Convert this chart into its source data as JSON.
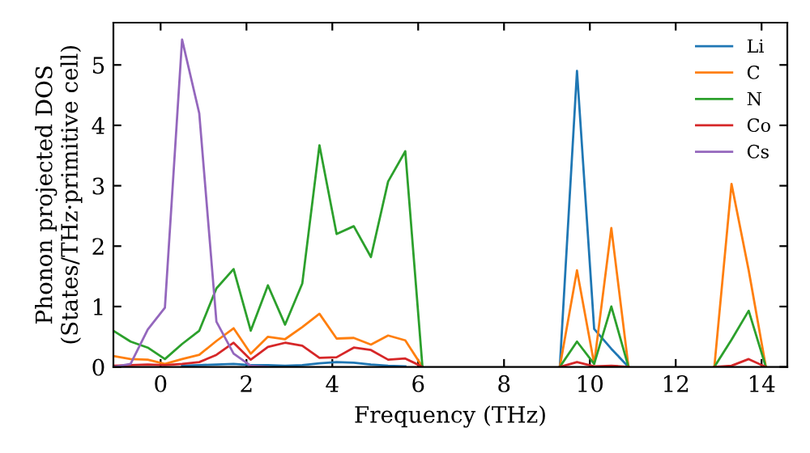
{
  "chart_data": {
    "type": "line",
    "xlabel": "Frequency (THz)",
    "ylabel": "Phonon projected DOS\n(States/THz·primitive cell)",
    "x": [
      -1.1,
      -0.7,
      -0.3,
      0.1,
      0.5,
      0.9,
      1.3,
      1.7,
      2.1,
      2.5,
      2.9,
      3.3,
      3.7,
      4.1,
      4.5,
      4.9,
      5.3,
      5.7,
      6.1,
      6.5,
      6.9,
      7.3,
      7.7,
      8.1,
      8.5,
      8.9,
      9.3,
      9.7,
      10.1,
      10.5,
      10.9,
      11.3,
      11.7,
      12.1,
      12.5,
      12.9,
      13.3,
      13.7,
      14.1
    ],
    "series": [
      {
        "name": "Li",
        "color": "#1f77b4",
        "values": [
          null,
          null,
          null,
          null,
          0.02,
          0.03,
          0.04,
          0.05,
          0.03,
          0.03,
          0.02,
          0.03,
          0.06,
          0.08,
          0.07,
          0.04,
          0.02,
          0.01,
          null,
          null,
          null,
          null,
          null,
          null,
          null,
          null,
          0,
          4.9,
          0.63,
          0.3,
          0,
          null,
          null,
          null,
          null,
          null,
          null,
          null,
          null
        ]
      },
      {
        "name": "C",
        "color": "#ff7f0e",
        "values": [
          0.18,
          0.13,
          0.12,
          0.05,
          0.13,
          0.2,
          0.43,
          0.64,
          0.22,
          0.5,
          0.46,
          0.66,
          0.88,
          0.47,
          0.48,
          0.37,
          0.52,
          0.44,
          0,
          null,
          null,
          null,
          null,
          null,
          null,
          null,
          0,
          1.6,
          0.05,
          2.3,
          0,
          null,
          null,
          null,
          null,
          0,
          3.03,
          1.6,
          0
        ]
      },
      {
        "name": "N",
        "color": "#2ca02c",
        "values": [
          0.6,
          0.42,
          0.32,
          0.13,
          0.38,
          0.6,
          1.3,
          1.62,
          0.6,
          1.35,
          0.7,
          1.38,
          3.67,
          2.2,
          2.33,
          1.82,
          3.07,
          3.57,
          0,
          null,
          null,
          null,
          null,
          null,
          null,
          null,
          0,
          0.42,
          0.05,
          1.0,
          0,
          null,
          null,
          null,
          null,
          0,
          0.45,
          0.93,
          0
        ]
      },
      {
        "name": "Co",
        "color": "#d62728",
        "values": [
          0.02,
          0.03,
          0.04,
          0.03,
          0.05,
          0.08,
          0.2,
          0.4,
          0.12,
          0.33,
          0.4,
          0.35,
          0.15,
          0.16,
          0.32,
          0.28,
          0.12,
          0.14,
          0,
          null,
          null,
          null,
          null,
          null,
          null,
          null,
          0,
          0.08,
          0.01,
          0.02,
          0,
          null,
          null,
          null,
          null,
          0,
          0.02,
          0.13,
          0
        ]
      },
      {
        "name": "Cs",
        "color": "#9467bd",
        "values": [
          0,
          0.05,
          0.62,
          0.98,
          5.42,
          4.2,
          0.75,
          0.22,
          0.02,
          0,
          null,
          null,
          null,
          null,
          null,
          null,
          null,
          null,
          null,
          null,
          null,
          null,
          null,
          null,
          null,
          null,
          null,
          null,
          null,
          null,
          null,
          null,
          null,
          null,
          null,
          null,
          null,
          null,
          null
        ]
      }
    ],
    "xlim": [
      -1.1,
      14.6
    ],
    "ylim": [
      0,
      5.7
    ],
    "xticks": [
      0,
      2,
      4,
      6,
      8,
      10,
      12,
      14
    ],
    "yticks": [
      0,
      1,
      2,
      3,
      4,
      5
    ],
    "grid": false,
    "legend": "top right",
    "marker": "none",
    "line_style": "solid"
  }
}
